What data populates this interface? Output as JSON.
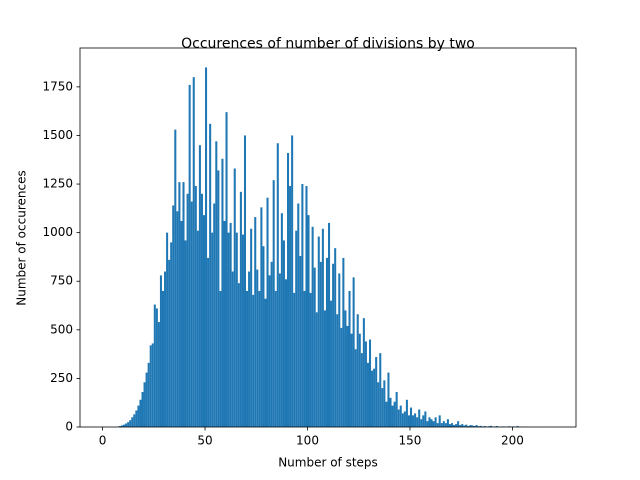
{
  "chart_data": {
    "type": "histogram",
    "title": "Occurences of number of divisions by two",
    "x_label": "Number of steps",
    "y_label": "Number of occurences",
    "color": "#1f77b4",
    "bins": [
      0,
      1,
      2,
      3,
      4,
      5,
      6,
      7,
      8,
      9,
      10,
      11,
      12,
      13,
      14,
      15,
      16,
      17,
      18,
      19,
      20,
      21,
      22,
      23,
      24,
      25,
      26,
      27,
      28,
      29,
      30,
      31,
      32,
      33,
      34,
      35,
      36,
      37,
      38,
      39,
      40,
      41,
      42,
      43,
      44,
      45,
      46,
      47,
      48,
      49,
      50,
      51,
      52,
      53,
      54,
      55,
      56,
      57,
      58,
      59,
      60,
      61,
      62,
      63,
      64,
      65,
      66,
      67,
      68,
      69,
      70,
      71,
      72,
      73,
      74,
      75,
      76,
      77,
      78,
      79,
      80,
      81,
      82,
      83,
      84,
      85,
      86,
      87,
      88,
      89,
      90,
      91,
      92,
      93,
      94,
      95,
      96,
      97,
      98,
      99,
      100,
      101,
      102,
      103,
      104,
      105,
      106,
      107,
      108,
      109,
      110,
      111,
      112,
      113,
      114,
      115,
      116,
      117,
      118,
      119,
      120,
      121,
      122,
      123,
      124,
      125,
      126,
      127,
      128,
      129,
      130,
      131,
      132,
      133,
      134,
      135,
      136,
      137,
      138,
      139,
      140,
      141,
      142,
      143,
      144,
      145,
      146,
      147,
      148,
      149,
      150,
      151,
      152,
      153,
      154,
      155,
      156,
      157,
      158,
      159,
      160,
      161,
      162,
      163,
      164,
      165,
      166,
      167,
      168,
      169,
      170,
      171,
      172,
      173,
      174,
      175,
      176,
      177,
      178,
      179,
      180,
      181,
      182,
      183,
      184,
      185,
      186,
      187,
      188,
      189,
      190,
      191,
      192,
      193,
      194,
      195,
      196,
      197,
      198,
      199,
      200,
      201,
      202,
      203,
      204,
      205,
      206,
      207,
      208,
      209,
      210,
      211,
      212,
      213,
      214,
      215,
      216,
      217,
      218,
      219,
      220
    ],
    "counts": [
      0,
      0,
      0,
      0,
      0,
      0,
      0,
      2,
      5,
      8,
      12,
      18,
      25,
      35,
      50,
      65,
      85,
      110,
      140,
      180,
      230,
      280,
      330,
      420,
      430,
      630,
      610,
      540,
      780,
      700,
      800,
      1000,
      860,
      950,
      1140,
      1530,
      1110,
      1260,
      1060,
      1260,
      960,
      1200,
      1760,
      1160,
      1800,
      1240,
      1010,
      1450,
      1200,
      1090,
      1850,
      870,
      1560,
      1000,
      1150,
      1470,
      1320,
      700,
      1380,
      1060,
      1620,
      1000,
      1050,
      800,
      1330,
      1000,
      740,
      1210,
      990,
      1500,
      700,
      800,
      1020,
      680,
      1080,
      810,
      700,
      1130,
      930,
      660,
      1180,
      780,
      850,
      1270,
      700,
      1460,
      790,
      1100,
      960,
      760,
      1410,
      1240,
      1500,
      690,
      1010,
      1150,
      880,
      1250,
      700,
      1240,
      1090,
      690,
      1030,
      820,
      590,
      980,
      850,
      1020,
      600,
      870,
      1050,
      650,
      840,
      920,
      580,
      790,
      510,
      870,
      600,
      520,
      700,
      480,
      770,
      400,
      580,
      480,
      380,
      560,
      440,
      330,
      450,
      290,
      300,
      360,
      230,
      380,
      200,
      240,
      130,
      280,
      150,
      110,
      130,
      180,
      90,
      110,
      70,
      80,
      140,
      60,
      100,
      60,
      70,
      50,
      90,
      40,
      60,
      80,
      30,
      50,
      40,
      30,
      50,
      20,
      60,
      20,
      30,
      20,
      40,
      15,
      20,
      10,
      15,
      30,
      10,
      15,
      8,
      12,
      5,
      10,
      8,
      5,
      10,
      4,
      6,
      3,
      5,
      2,
      4,
      6,
      2,
      3,
      5,
      1,
      2,
      3,
      2,
      1,
      4,
      2,
      3,
      1,
      5,
      0,
      1,
      0,
      2,
      0,
      1,
      0,
      0,
      0,
      1,
      0,
      0,
      0,
      0,
      0,
      0,
      1
    ],
    "xlim": [
      -11,
      231
    ],
    "ylim": [
      0,
      1950
    ],
    "xticks": [
      0,
      50,
      100,
      150,
      200
    ],
    "yticks": [
      0,
      250,
      500,
      750,
      1000,
      1250,
      1500,
      1750
    ]
  }
}
